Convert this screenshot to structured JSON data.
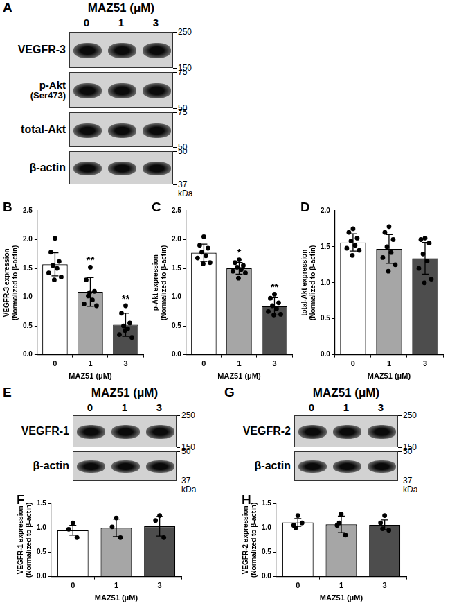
{
  "chart_data": [
    {
      "panel": "B",
      "type": "bar",
      "categories": [
        "0",
        "1",
        "3"
      ],
      "values": [
        1.57,
        1.09,
        0.52
      ],
      "errors": [
        0.2,
        0.25,
        0.2
      ],
      "points": [
        [
          2.02,
          1.78,
          1.62,
          1.55,
          1.5,
          1.42,
          1.35,
          1.3
        ],
        [
          1.52,
          1.3,
          1.1,
          1.02,
          0.95,
          0.88,
          0.85,
          1.08
        ],
        [
          0.85,
          0.72,
          0.55,
          0.5,
          0.45,
          0.35,
          0.3,
          0.42
        ]
      ],
      "significance": [
        null,
        "**",
        "**"
      ],
      "colors": [
        "#ffffff",
        "#a6a6a6",
        "#4d4d4d"
      ],
      "x_label": "MAZ51 (μM)",
      "y_label": [
        "VEGFR-3 expression",
        "(Normalized to β-actin)"
      ],
      "ylim": [
        0,
        2.5
      ],
      "yticks": [
        {
          "value": 0,
          "label": "0.0"
        },
        {
          "value": 0.5,
          "label": "0.5"
        },
        {
          "value": 1,
          "label": "1.0"
        },
        {
          "value": 1.5,
          "label": "1.5"
        },
        {
          "value": 2,
          "label": "2.0"
        },
        {
          "value": 2.5,
          "label": "2.5"
        }
      ],
      "grid": false
    },
    {
      "panel": "C",
      "type": "bar",
      "categories": [
        "0",
        "1",
        "3"
      ],
      "values": [
        1.77,
        1.5,
        0.84
      ],
      "errors": [
        0.15,
        0.1,
        0.15
      ],
      "points": [
        [
          2.05,
          1.9,
          1.85,
          1.78,
          1.72,
          1.68,
          1.6,
          1.58
        ],
        [
          1.65,
          1.6,
          1.55,
          1.52,
          1.48,
          1.45,
          1.42,
          1.33
        ],
        [
          1.05,
          0.98,
          0.9,
          0.85,
          0.8,
          0.75,
          0.7,
          0.69
        ]
      ],
      "significance": [
        null,
        "*",
        "**"
      ],
      "colors": [
        "#ffffff",
        "#a6a6a6",
        "#4d4d4d"
      ],
      "x_label": "MAZ51 (μM)",
      "y_label": [
        "p-Akt expression",
        "(Normalized to β-actin)"
      ],
      "ylim": [
        0,
        2.5
      ],
      "yticks": [
        {
          "value": 0,
          "label": "0.0"
        },
        {
          "value": 0.5,
          "label": "0.5"
        },
        {
          "value": 1,
          "label": "1.0"
        },
        {
          "value": 1.5,
          "label": "1.5"
        },
        {
          "value": 2,
          "label": "2.0"
        },
        {
          "value": 2.5,
          "label": "2.5"
        }
      ],
      "grid": false
    },
    {
      "panel": "D",
      "type": "bar",
      "categories": [
        "0",
        "1",
        "3"
      ],
      "values": [
        1.56,
        1.47,
        1.34
      ],
      "errors": [
        0.12,
        0.2,
        0.22
      ],
      "points": [
        [
          1.75,
          1.7,
          1.62,
          1.58,
          1.52,
          1.48,
          1.45,
          1.38
        ],
        [
          1.78,
          1.7,
          1.6,
          1.5,
          1.42,
          1.35,
          1.25,
          1.16
        ],
        [
          1.62,
          1.6,
          1.55,
          1.4,
          1.3,
          1.2,
          1.05,
          1.0
        ]
      ],
      "colors": [
        "#ffffff",
        "#a6a6a6",
        "#4d4d4d"
      ],
      "x_label": "MAZ51 (μM)",
      "y_label": [
        "total-Akt expression",
        "(Normalized to β-actin)"
      ],
      "ylim": [
        0,
        2
      ],
      "yticks": [
        {
          "value": 0,
          "label": "0.0"
        },
        {
          "value": 0.5,
          "label": "0.5"
        },
        {
          "value": 1,
          "label": "1.0"
        },
        {
          "value": 1.5,
          "label": "1.5"
        },
        {
          "value": 2,
          "label": "2.0"
        }
      ],
      "grid": false
    },
    {
      "panel": "F",
      "type": "bar",
      "categories": [
        "0",
        "1",
        "3"
      ],
      "values": [
        0.95,
        1.0,
        1.03
      ],
      "errors": [
        0.1,
        0.18,
        0.2
      ],
      "points": [
        [
          1.1,
          0.97,
          0.8
        ],
        [
          1.2,
          1.02,
          0.8
        ],
        [
          1.25,
          1.15,
          0.8
        ]
      ],
      "colors": [
        "#ffffff",
        "#a6a6a6",
        "#4d4d4d"
      ],
      "x_label": "MAZ51 (μM)",
      "y_label": [
        "VEGFR-1 expression",
        "(Normalized to β-actin)"
      ],
      "ylim": [
        0,
        1.5
      ],
      "yticks": [
        {
          "value": 0,
          "label": "0.0"
        },
        {
          "value": 0.5,
          "label": "0.5"
        },
        {
          "value": 1,
          "label": "1.0"
        },
        {
          "value": 1.5,
          "label": "1.5"
        }
      ],
      "grid": false
    },
    {
      "panel": "H",
      "type": "bar",
      "categories": [
        "0",
        "1",
        "3"
      ],
      "values": [
        1.11,
        1.07,
        1.06
      ],
      "errors": [
        0.08,
        0.17,
        0.1
      ],
      "points": [
        [
          1.25,
          1.05,
          1.1,
          1.0
        ],
        [
          1.28,
          1.05,
          0.85,
          1.1
        ],
        [
          1.25,
          1.1,
          0.95,
          0.98
        ]
      ],
      "colors": [
        "#ffffff",
        "#a6a6a6",
        "#4d4d4d"
      ],
      "x_label": "MAZ51 (μM)",
      "y_label": [
        "VEGFR-2 expression",
        "(Normalized to β-actin)"
      ],
      "ylim": [
        0,
        1.5
      ],
      "yticks": [
        {
          "value": 0,
          "label": "0.0"
        },
        {
          "value": 0.5,
          "label": "0.5"
        },
        {
          "value": 1,
          "label": "1.0"
        },
        {
          "value": 1.5,
          "label": "1.5"
        }
      ],
      "grid": false
    }
  ],
  "blots": [
    {
      "panel": "A",
      "header": "MAZ51 (μM)",
      "lanes": [
        "0",
        "1",
        "3"
      ],
      "unit": "kDa",
      "rows": [
        {
          "label": [
            "VEGFR-3"
          ],
          "markers": [
            250,
            150
          ]
        },
        {
          "label": [
            "p-Akt",
            "(Ser473)"
          ],
          "markers": [
            75,
            50
          ]
        },
        {
          "label": [
            "total-Akt"
          ],
          "markers": [
            75,
            50
          ]
        },
        {
          "label": [
            "β-actin"
          ],
          "markers": [
            50,
            37
          ]
        }
      ]
    },
    {
      "panel": "E",
      "header": "MAZ51 (μM)",
      "lanes": [
        "0",
        "1",
        "3"
      ],
      "unit": "kDa",
      "rows": [
        {
          "label": [
            "VEGFR-1"
          ],
          "markers": [
            250,
            150
          ]
        },
        {
          "label": [
            "β-actin"
          ],
          "markers": [
            50,
            37
          ]
        }
      ]
    },
    {
      "panel": "G",
      "header": "MAZ51 (μM)",
      "lanes": [
        "0",
        "1",
        "3"
      ],
      "unit": "kDa",
      "rows": [
        {
          "label": [
            "VEGFR-2"
          ],
          "markers": [
            250,
            150
          ]
        },
        {
          "label": [
            "β-actin"
          ],
          "markers": [
            50,
            37
          ]
        }
      ]
    }
  ]
}
